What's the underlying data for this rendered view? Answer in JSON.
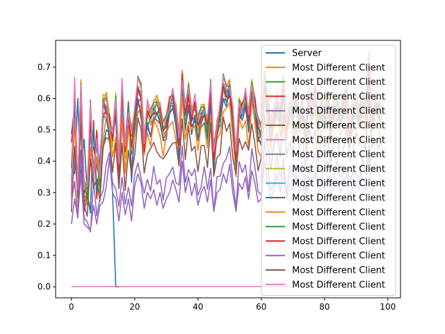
{
  "chart_data": {
    "type": "line",
    "title": "",
    "xlabel": "",
    "ylabel": "",
    "xlim": [
      -5,
      104
    ],
    "ylim": [
      -0.035,
      0.785
    ],
    "x_ticks": [
      0,
      20,
      40,
      60,
      80,
      100
    ],
    "y_ticks": [
      0.0,
      0.1,
      0.2,
      0.3,
      0.4,
      0.5,
      0.6,
      0.7
    ],
    "x_tick_labels": [
      "0",
      "20",
      "40",
      "60",
      "80",
      "100"
    ],
    "y_tick_labels": [
      "0.0",
      "0.1",
      "0.2",
      "0.3",
      "0.4",
      "0.5",
      "0.6",
      "0.7"
    ],
    "grid": false,
    "legend_position": "upper-right",
    "legend_entries": [
      "Server",
      "Most Different Client",
      "Most Different Client",
      "Most Different Client",
      "Most Different Client",
      "Most Different Client",
      "Most Different Client",
      "Most Different Client",
      "Most Different Client",
      "Most Different Client",
      "Most Different Client",
      "Most Different Client",
      "Most Different Client",
      "Most Different Client",
      "Most Different Client",
      "Most Different Client",
      "Most Different Client"
    ],
    "colors": [
      "#1f77b4",
      "#ff7f0e",
      "#2ca02c",
      "#d62728",
      "#9467bd",
      "#8c564b",
      "#e377c2",
      "#7f7f7f",
      "#bcbd22",
      "#17becf",
      "#1f77b4",
      "#ff7f0e",
      "#2ca02c",
      "#d62728",
      "#9467bd",
      "#8c564b",
      "#e377c2"
    ],
    "series_templates": [
      {
        "index": 0,
        "values": [
          0.38,
          0.36,
          0.6,
          0.34,
          0.47,
          0.3,
          0.44,
          0.37,
          0.45,
          0.35,
          0.44,
          0.5,
          0.49,
          0.3,
          0.0,
          0.0
        ]
      },
      {
        "index": 1,
        "values": [
          0.28,
          0.65,
          0.3,
          0.66,
          0.33,
          0.3,
          0.59,
          0.36,
          0.5,
          0.33,
          0.58,
          0.62,
          0.55,
          0.48,
          0.6,
          0.41,
          0.64,
          0.44,
          0.56,
          0.51,
          0.55,
          0.66,
          0.65,
          0.48,
          0.58,
          0.55,
          0.59,
          0.61,
          0.57,
          0.52,
          0.55,
          0.6,
          0.62,
          0.57,
          0.49,
          0.69,
          0.56,
          0.64,
          0.57,
          0.59,
          0.53,
          0.57,
          0.58,
          0.52,
          0.65,
          0.44,
          0.53,
          0.57,
          0.67,
          0.64,
          0.66,
          0.56,
          0.43,
          0.6,
          0.58,
          0.62,
          0.55,
          0.66,
          0.6,
          0.52,
          0.51,
          0.69,
          0.6,
          0.52,
          0.57,
          0.62,
          0.56,
          0.66,
          0.53,
          0.6,
          0.57,
          0.63,
          0.56,
          0.61,
          0.51,
          0.62,
          0.58,
          0.64,
          0.55,
          0.6,
          0.57,
          0.62,
          0.54,
          0.59,
          0.61,
          0.56,
          0.6,
          0.63,
          0.52,
          0.58,
          0.6,
          0.57,
          0.62,
          0.58,
          0.75,
          0.56,
          0.61,
          0.59,
          0.57
        ]
      },
      {
        "index": 2,
        "values": [
          0.3,
          0.63,
          0.31,
          0.62,
          0.34,
          0.31,
          0.56,
          0.34,
          0.49,
          0.33,
          0.59,
          0.57,
          0.53,
          0.45,
          0.59,
          0.39,
          0.62,
          0.42,
          0.55,
          0.48,
          0.53,
          0.63,
          0.62,
          0.46,
          0.55,
          0.54,
          0.57,
          0.58,
          0.56,
          0.5,
          0.53,
          0.58,
          0.6,
          0.55,
          0.47,
          0.66,
          0.54,
          0.62,
          0.55,
          0.57,
          0.51,
          0.55,
          0.57,
          0.5,
          0.62,
          0.42,
          0.51,
          0.55,
          0.64,
          0.62,
          0.64,
          0.54,
          0.41,
          0.58,
          0.56,
          0.6,
          0.53,
          0.64,
          0.58,
          0.5,
          0.49,
          0.66,
          0.58,
          0.5,
          0.55,
          0.6,
          0.54,
          0.64,
          0.51,
          0.58,
          0.55,
          0.61,
          0.54,
          0.59,
          0.49,
          0.6,
          0.56,
          0.62,
          0.53,
          0.58,
          0.55,
          0.6,
          0.52,
          0.57,
          0.59,
          0.54,
          0.58,
          0.61,
          0.5,
          0.56,
          0.58,
          0.55,
          0.6,
          0.56,
          0.7,
          0.54,
          0.59,
          0.57,
          0.55
        ]
      },
      {
        "index": 3,
        "values": [
          0.46,
          0.56,
          0.29,
          0.6,
          0.24,
          0.29,
          0.24,
          0.53,
          0.28,
          0.4,
          0.55,
          0.56,
          0.46,
          0.5,
          0.55,
          0.34,
          0.52,
          0.45,
          0.59,
          0.36,
          0.5,
          0.6,
          0.55,
          0.42,
          0.51,
          0.48,
          0.54,
          0.53,
          0.52,
          0.47,
          0.49,
          0.55,
          0.57,
          0.52,
          0.43,
          0.61,
          0.5,
          0.58,
          0.51,
          0.53,
          0.47,
          0.52,
          0.55,
          0.46,
          0.59,
          0.38,
          0.48,
          0.52,
          0.6,
          0.59,
          0.61,
          0.51,
          0.38,
          0.55,
          0.53,
          0.57,
          0.5,
          0.61,
          0.55,
          0.47,
          0.46,
          0.62,
          0.55,
          0.47,
          0.52,
          0.57,
          0.51,
          0.61,
          0.48,
          0.55,
          0.52,
          0.58,
          0.51,
          0.56,
          0.46,
          0.57,
          0.53,
          0.59,
          0.5,
          0.55,
          0.52,
          0.57,
          0.49,
          0.54,
          0.56,
          0.51,
          0.55,
          0.58,
          0.47,
          0.53,
          0.55,
          0.52,
          0.57,
          0.53,
          0.66,
          0.51,
          0.56,
          0.54,
          0.52
        ]
      },
      {
        "index": 4,
        "values": [
          0.2,
          0.28,
          0.22,
          0.36,
          0.2,
          0.19,
          0.18,
          0.26,
          0.2,
          0.26,
          0.27,
          0.32,
          0.41,
          0.3,
          0.28,
          0.21,
          0.3,
          0.23,
          0.28,
          0.21,
          0.32,
          0.36,
          0.33,
          0.25,
          0.3,
          0.28,
          0.31,
          0.26,
          0.3,
          0.25,
          0.28,
          0.3,
          0.34,
          0.31,
          0.27,
          0.4,
          0.3,
          0.35,
          0.29,
          0.33,
          0.26,
          0.3,
          0.32,
          0.27,
          0.34,
          0.24,
          0.3,
          0.31,
          0.36,
          0.33,
          0.39,
          0.3,
          0.24,
          0.33,
          0.31,
          0.35,
          0.28,
          0.37,
          0.33,
          0.27,
          0.28,
          0.4,
          0.33,
          0.28,
          0.31,
          0.36,
          0.3,
          0.37,
          0.28,
          0.33,
          0.31,
          0.36,
          0.3,
          0.34,
          0.27,
          0.35,
          0.32,
          0.37,
          0.29,
          0.33,
          0.31,
          0.35,
          0.29,
          0.33,
          0.34,
          0.3,
          0.33,
          0.36,
          0.28,
          0.32,
          0.33,
          0.31,
          0.35,
          0.32,
          0.42,
          0.3,
          0.34,
          0.33,
          0.31
        ]
      },
      {
        "index": 6,
        "values": [
          0.001,
          0.001,
          0.001,
          0.001,
          0.001,
          0.001,
          0.001,
          0.001,
          0.001,
          0.001,
          0.001,
          0.001,
          0.001,
          0.001,
          0.001,
          0.001,
          0.001,
          0.001,
          0.001,
          0.001,
          0.001,
          0.001,
          0.001,
          0.001,
          0.001,
          0.001,
          0.001,
          0.001,
          0.001,
          0.001,
          0.001,
          0.001,
          0.001,
          0.001,
          0.001,
          0.001,
          0.001,
          0.001,
          0.001,
          0.001,
          0.001,
          0.001,
          0.001,
          0.001,
          0.001,
          0.001,
          0.001,
          0.001,
          0.001,
          0.001,
          0.001,
          0.001,
          0.001,
          0.001,
          0.001,
          0.001,
          0.001,
          0.001,
          0.001,
          0.001,
          0.001,
          0.001,
          0.001,
          0.001,
          0.001,
          0.001,
          0.001,
          0.001,
          0.001,
          0.001,
          0.001,
          0.001,
          0.001,
          0.001,
          0.001,
          0.001,
          0.001,
          0.001,
          0.001,
          0.001,
          0.001,
          0.001,
          0.001,
          0.001,
          0.001,
          0.001,
          0.001,
          0.001,
          0.001,
          0.001,
          0.001,
          0.001,
          0.001,
          0.001,
          0.001,
          0.001,
          0.001,
          0.001,
          0.001
        ]
      }
    ]
  }
}
